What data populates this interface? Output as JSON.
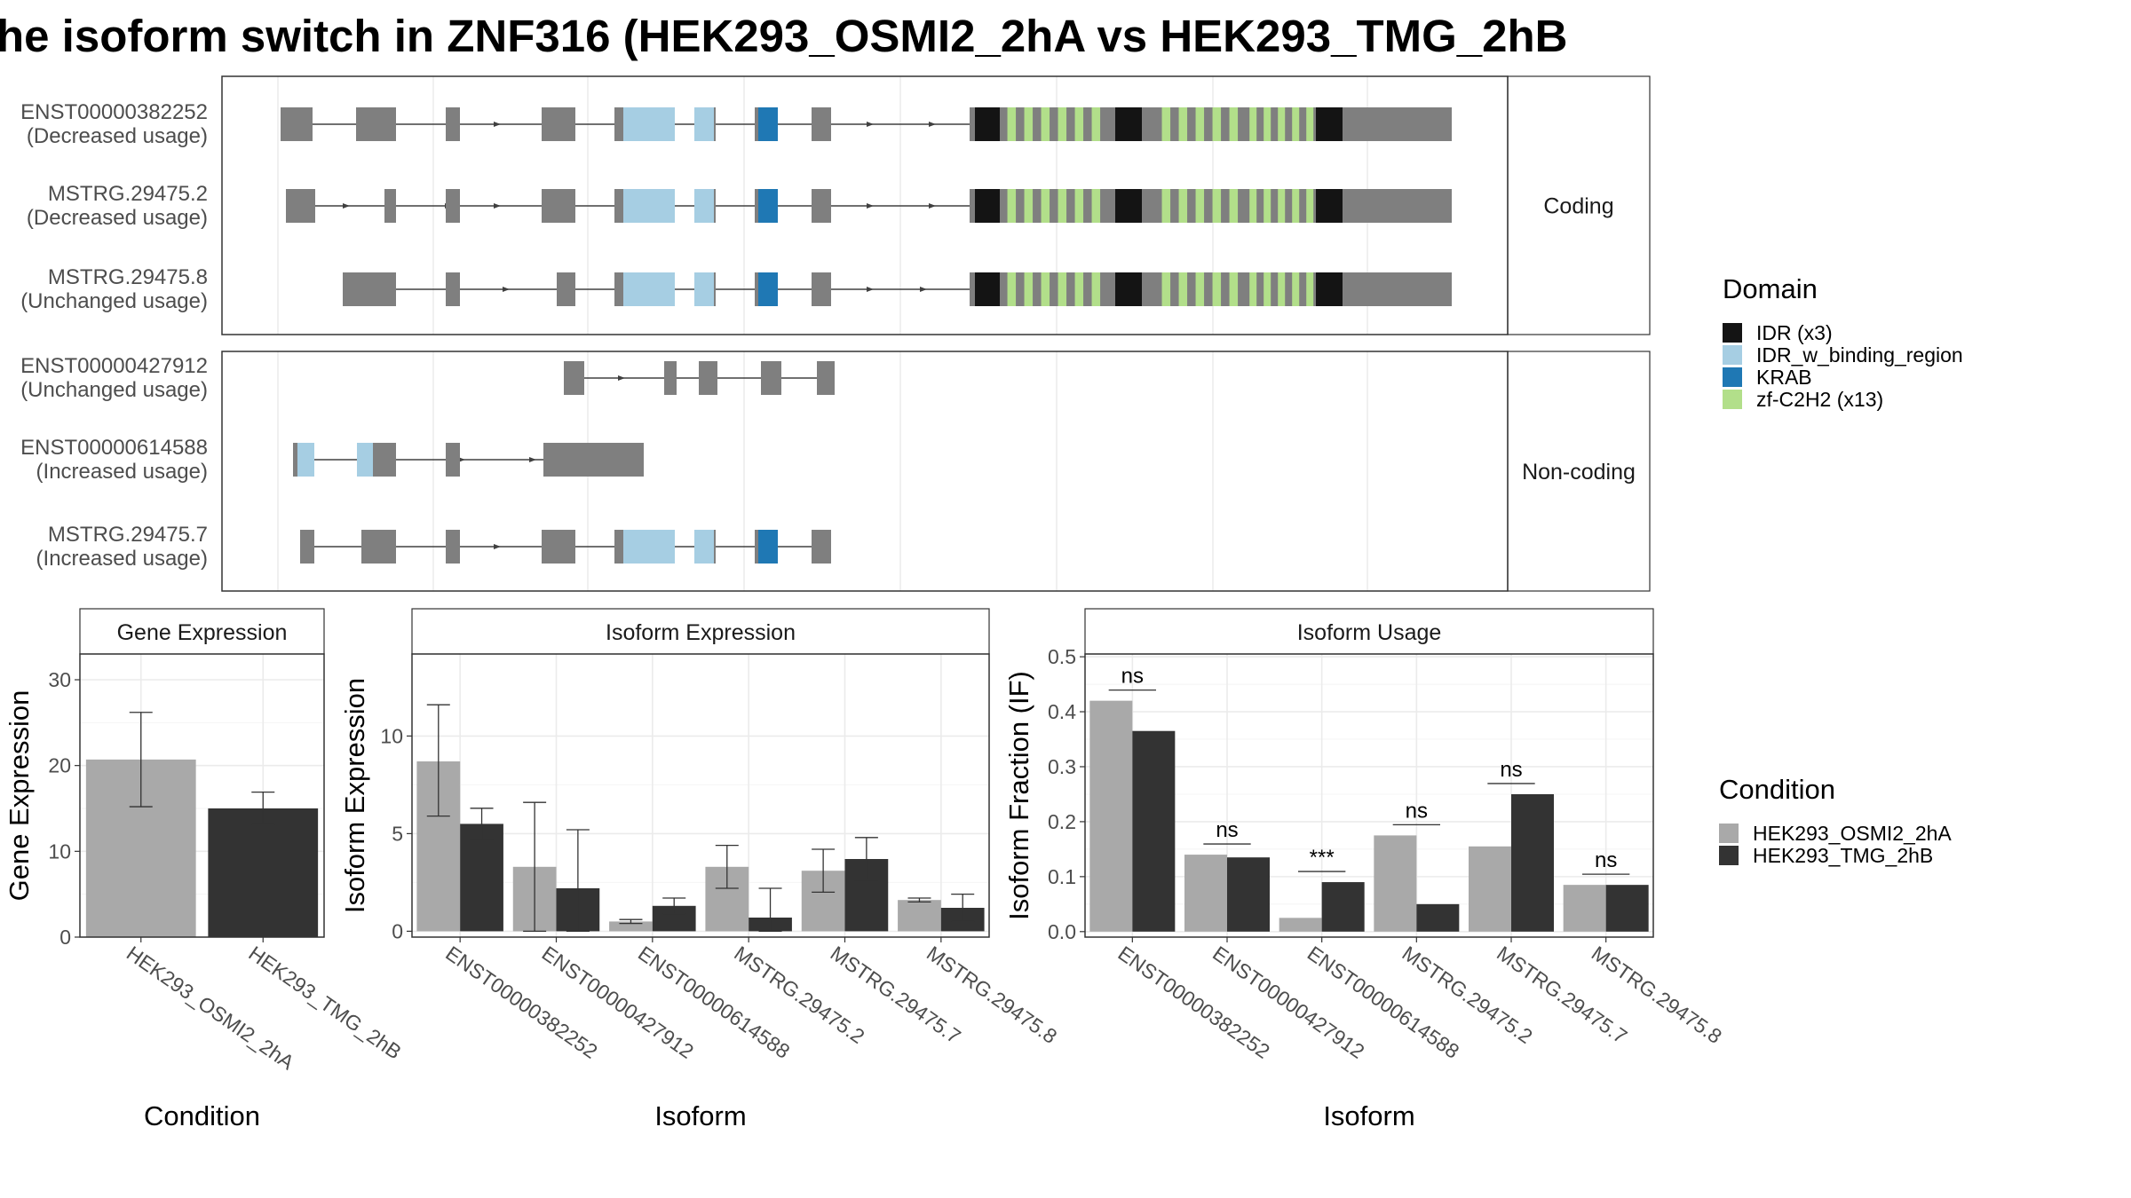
{
  "title": "he isoform switch in ZNF316 (HEK293_OSMI2_2hA vs HEK293_TMG_2hB",
  "domain_legend": {
    "title": "Domain",
    "items": [
      {
        "label": "IDR (x3)",
        "color": "#141414"
      },
      {
        "label": "IDR_w_binding_region",
        "color": "#a6cee3"
      },
      {
        "label": "KRAB",
        "color": "#1f78b4"
      },
      {
        "label": "zf-C2H2 (x13)",
        "color": "#b2df8a"
      }
    ]
  },
  "condition_legend": {
    "title": "Condition",
    "items": [
      {
        "label": "HEK293_OSMI2_2hA",
        "color": "#a9a9a9"
      },
      {
        "label": "HEK293_TMG_2hB",
        "color": "#333333"
      }
    ]
  },
  "structure": {
    "panels": [
      {
        "label": "Coding",
        "transcripts": [
          {
            "id": "ENST00000382252",
            "usage": "(Decreased usage)",
            "scheme": "full"
          },
          {
            "id": "MSTRG.29475.2",
            "usage": "(Decreased usage)",
            "scheme": "alt2"
          },
          {
            "id": "MSTRG.29475.8",
            "usage": "(Unchanged usage)",
            "scheme": "alt8"
          }
        ]
      },
      {
        "label": "Non-coding",
        "transcripts": [
          {
            "id": "ENST00000427912",
            "usage": "(Unchanged usage)",
            "scheme": "n427"
          },
          {
            "id": "ENST00000614588",
            "usage": "(Increased usage)",
            "scheme": "n614"
          },
          {
            "id": "MSTRG.29475.7",
            "usage": "(Increased usage)",
            "scheme": "n7"
          }
        ]
      }
    ]
  },
  "chart_data": [
    {
      "type": "bar",
      "title": "Gene Expression",
      "xlabel": "Condition",
      "ylabel": "Gene Expression",
      "categories": [
        "HEK293_OSMI2_2hA",
        "HEK293_TMG_2hB"
      ],
      "values": [
        20.7,
        15.0
      ],
      "error_low": [
        15.2,
        13.1
      ],
      "error_high": [
        26.2,
        16.9
      ],
      "ylim": [
        0,
        33
      ],
      "yticks": [
        0,
        10,
        20,
        30
      ]
    },
    {
      "type": "bar",
      "title": "Isoform Expression",
      "xlabel": "Isoform",
      "ylabel": "Isoform Expression",
      "categories": [
        "ENST00000382252",
        "ENST00000427912",
        "ENST00000614588",
        "MSTRG.29475.2",
        "MSTRG.29475.7",
        "MSTRG.29475.8"
      ],
      "series": [
        {
          "name": "HEK293_OSMI2_2hA",
          "values": [
            8.7,
            3.3,
            0.5,
            3.3,
            3.1,
            1.6
          ],
          "error_low": [
            5.9,
            0.0,
            0.4,
            2.2,
            2.0,
            1.5
          ],
          "error_high": [
            11.6,
            6.6,
            0.6,
            4.4,
            4.2,
            1.7
          ]
        },
        {
          "name": "HEK293_TMG_2hB",
          "values": [
            5.5,
            2.2,
            1.3,
            0.7,
            3.7,
            1.2
          ],
          "error_low": [
            4.7,
            0.0,
            0.9,
            0.0,
            2.6,
            0.5
          ],
          "error_high": [
            6.3,
            5.2,
            1.7,
            2.2,
            4.8,
            1.9
          ]
        }
      ],
      "ylim": [
        -0.3,
        14.2
      ],
      "yticks": [
        0,
        5,
        10
      ]
    },
    {
      "type": "bar",
      "title": "Isoform Usage",
      "xlabel": "Isoform",
      "ylabel": "Isoform Fraction (IF)",
      "categories": [
        "ENST00000382252",
        "ENST00000427912",
        "ENST00000614588",
        "MSTRG.29475.2",
        "MSTRG.29475.7",
        "MSTRG.29475.8"
      ],
      "series": [
        {
          "name": "HEK293_OSMI2_2hA",
          "values": [
            0.42,
            0.14,
            0.025,
            0.175,
            0.155,
            0.085
          ]
        },
        {
          "name": "HEK293_TMG_2hB",
          "values": [
            0.365,
            0.135,
            0.09,
            0.05,
            0.25,
            0.085
          ]
        }
      ],
      "significance": [
        "ns",
        "ns",
        "***",
        "ns",
        "ns",
        "ns"
      ],
      "ylim": [
        -0.01,
        0.505
      ],
      "yticks": [
        0.0,
        0.1,
        0.2,
        0.3,
        0.4,
        0.5
      ],
      "ytick_labels": [
        "0.0",
        "0.1",
        "0.2",
        "0.3",
        "0.4",
        "0.5"
      ]
    }
  ]
}
